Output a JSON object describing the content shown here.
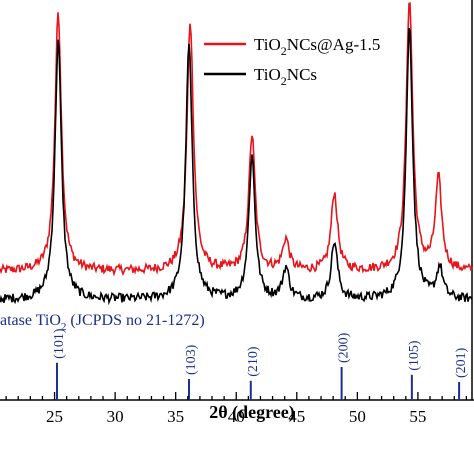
{
  "chart_data": {
    "type": "line",
    "xlabel": "2θ (degree)",
    "ylabel": "",
    "xlim": [
      20,
      59.3
    ],
    "xticks": [
      25,
      30,
      35,
      40,
      45,
      50,
      55
    ],
    "series": [
      {
        "name": "TiO2NCs@Ag-1.5",
        "color": "#e8141b",
        "baseline": 0.11,
        "peaks": [
          {
            "x": 25.3,
            "h": 1.0
          },
          {
            "x": 36.2,
            "h": 0.96
          },
          {
            "x": 41.3,
            "h": 0.52
          },
          {
            "x": 44.1,
            "h": 0.12
          },
          {
            "x": 48.1,
            "h": 0.3
          },
          {
            "x": 54.3,
            "h": 1.05
          },
          {
            "x": 56.7,
            "h": 0.35
          }
        ]
      },
      {
        "name": "TiO2NCs",
        "color": "#000000",
        "baseline": 0.0,
        "peaks": [
          {
            "x": 25.3,
            "h": 1.0
          },
          {
            "x": 36.1,
            "h": 0.98
          },
          {
            "x": 41.3,
            "h": 0.55
          },
          {
            "x": 44.1,
            "h": 0.12
          },
          {
            "x": 48.1,
            "h": 0.22
          },
          {
            "x": 54.3,
            "h": 1.05
          },
          {
            "x": 56.8,
            "h": 0.12
          }
        ]
      }
    ],
    "legend": {
      "position": "top-right",
      "entries": [
        {
          "base": "TiO",
          "sub": "2",
          "rest": "NCs@Ag-1.5",
          "color": "#e8141b"
        },
        {
          "base": "TiO",
          "sub": "2",
          "rest": "NCs",
          "color": "#000000"
        }
      ]
    },
    "reference": {
      "title": {
        "pre": "atase TiO",
        "sub": "2",
        "post": " (JCPDS no 21-1272)"
      },
      "color": "#1a2f8f",
      "lines": [
        {
          "x": 25.2,
          "label": "(101)",
          "h": 0.62
        },
        {
          "x": 36.1,
          "label": "(103)",
          "h": 0.35
        },
        {
          "x": 41.2,
          "label": "(210)",
          "h": 0.32
        },
        {
          "x": 48.7,
          "label": "(200)",
          "h": 0.55
        },
        {
          "x": 54.5,
          "label": "(105)",
          "h": 0.42
        },
        {
          "x": 58.4,
          "label": "(201)",
          "h": 0.3
        }
      ]
    }
  }
}
